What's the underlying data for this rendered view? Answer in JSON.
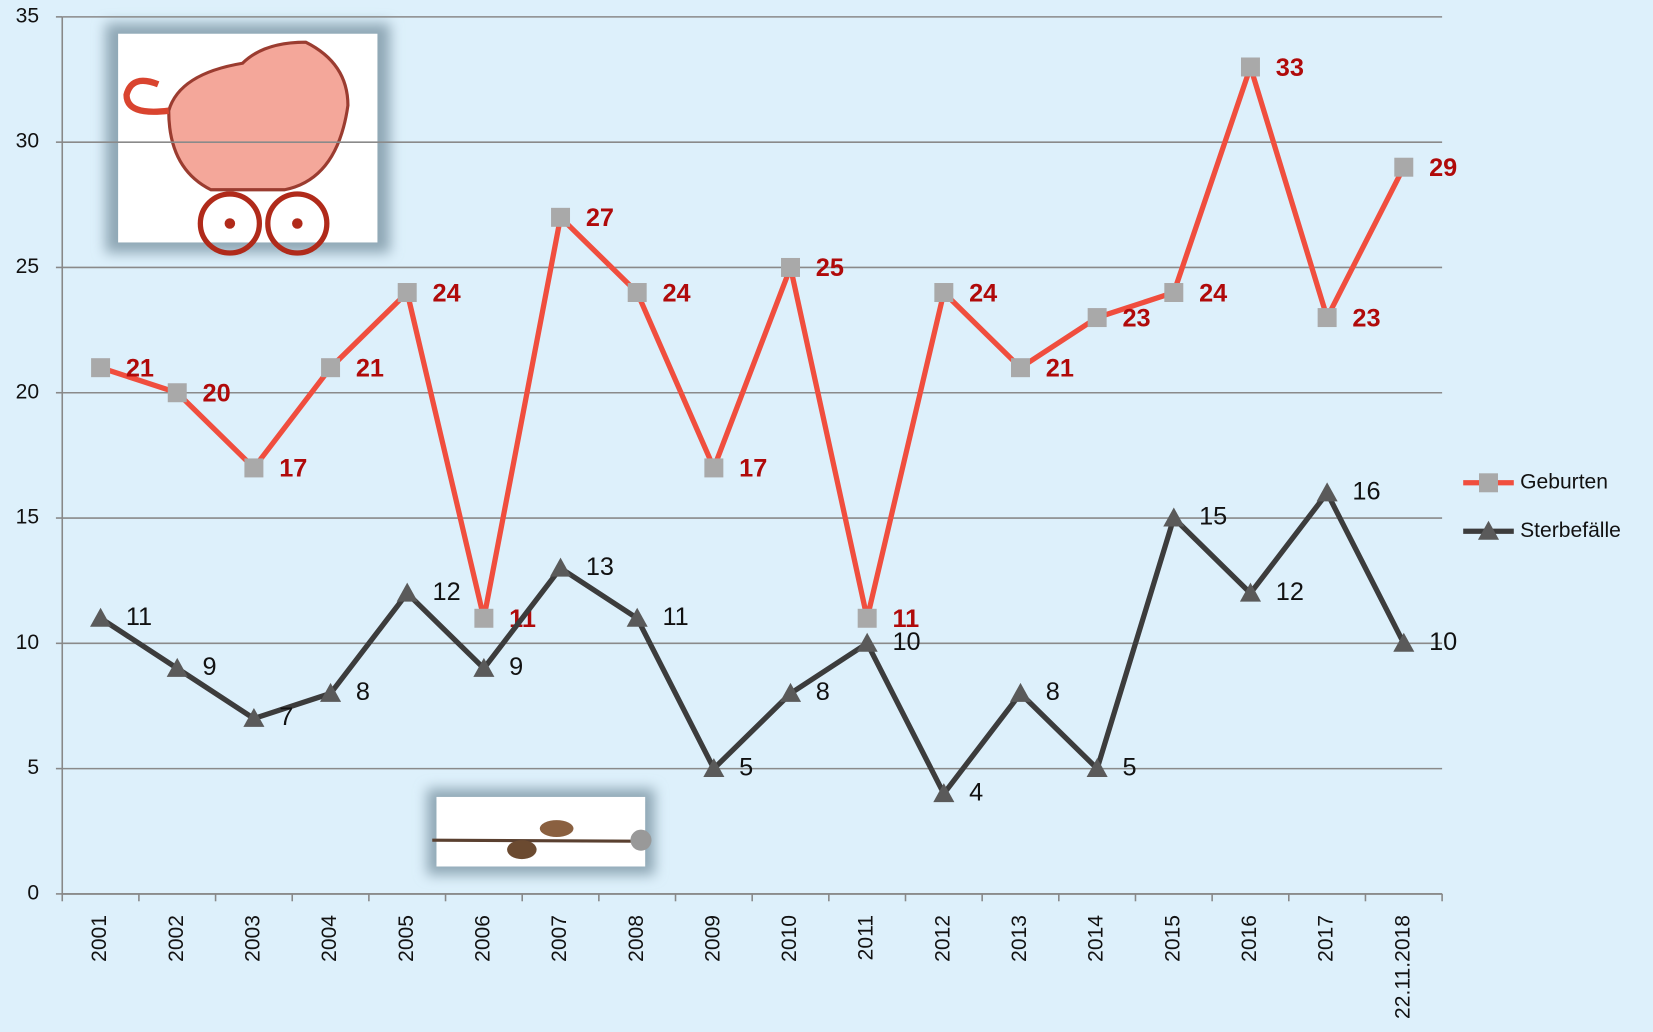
{
  "chart_data": {
    "type": "line",
    "categories": [
      "2001",
      "2002",
      "2003",
      "2004",
      "2005",
      "2006",
      "2007",
      "2008",
      "2009",
      "2010",
      "2011",
      "2012",
      "2013",
      "2014",
      "2015",
      "2016",
      "2017",
      "22.11.2018"
    ],
    "series": [
      {
        "name": "Geburten",
        "color": "#f04e3e",
        "marker": "square",
        "marker_color": "#a9a9a9",
        "label_color": "#b00a0a",
        "values": [
          21,
          20,
          17,
          21,
          24,
          11,
          27,
          24,
          17,
          25,
          11,
          24,
          21,
          23,
          24,
          33,
          23,
          29
        ]
      },
      {
        "name": "Sterbefälle",
        "color": "#3c3c3c",
        "marker": "triangle",
        "marker_color": "#5a5a5a",
        "label_color": "#111111",
        "values": [
          11,
          9,
          7,
          8,
          12,
          9,
          13,
          11,
          5,
          8,
          10,
          4,
          8,
          5,
          15,
          12,
          16,
          10
        ]
      }
    ],
    "ylim": [
      0,
      35
    ],
    "yticks": [
      0,
      5,
      10,
      15,
      20,
      25,
      30,
      35
    ],
    "grid": true,
    "legend": "right"
  }
}
